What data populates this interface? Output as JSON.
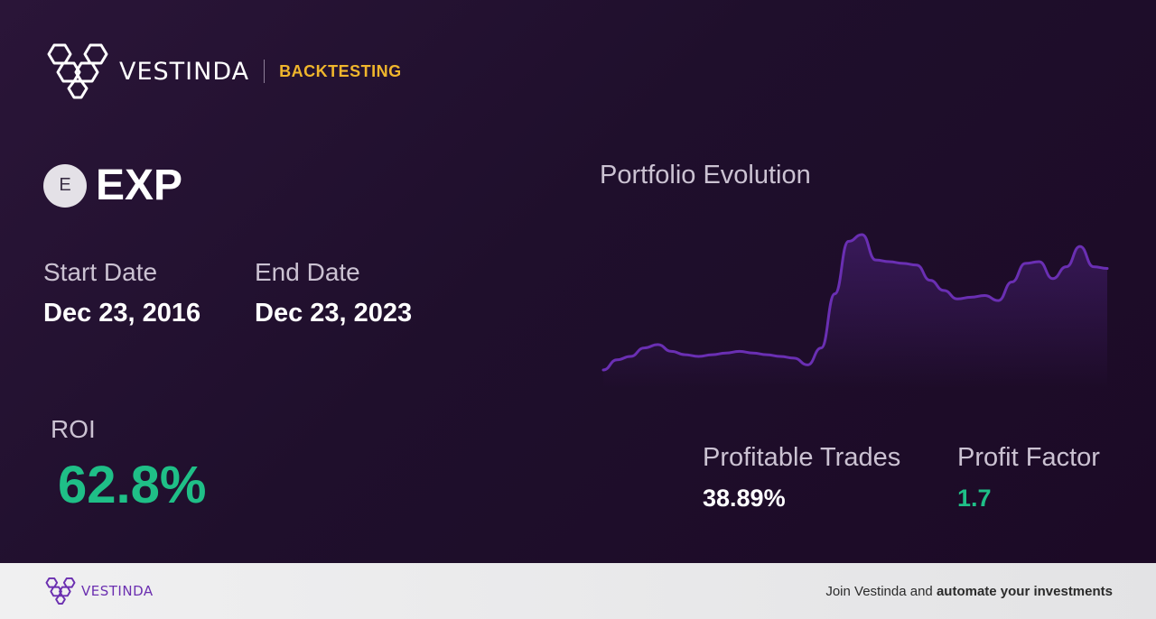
{
  "brand": {
    "name": "VESTINDA",
    "tag": "BACKTESTING",
    "accent_color": "#f0b62c"
  },
  "ticker": {
    "badge": "E",
    "symbol": "EXP"
  },
  "dates": {
    "start_label": "Start Date",
    "start_value": "Dec 23, 2016",
    "end_label": "End Date",
    "end_value": "Dec 23, 2023"
  },
  "roi": {
    "label": "ROI",
    "value": "62.8%",
    "color": "#1fbf87"
  },
  "chart": {
    "title": "Portfolio Evolution",
    "line_color": "#6a2fb3"
  },
  "chart_data": {
    "type": "line",
    "title": "Portfolio Evolution",
    "y": [
      0.8,
      0.86,
      0.88,
      0.93,
      0.95,
      0.91,
      0.89,
      0.88,
      0.89,
      0.9,
      0.91,
      0.9,
      0.89,
      0.88,
      0.87,
      0.83,
      0.93,
      1.25,
      1.56,
      1.6,
      1.45,
      1.44,
      1.43,
      1.42,
      1.33,
      1.27,
      1.22,
      1.23,
      1.24,
      1.21,
      1.32,
      1.43,
      1.44,
      1.34,
      1.41,
      1.53,
      1.41,
      1.4
    ],
    "grid": false,
    "legend": "none"
  },
  "stats": {
    "profitable_trades_label": "Profitable Trades",
    "profitable_trades_value": "38.89%",
    "profit_factor_label": "Profit Factor",
    "profit_factor_value": "1.7",
    "profit_factor_color": "#1fbf87"
  },
  "footer": {
    "brand_name": "VESTINDA",
    "cta_prefix": "Join Vestinda and ",
    "cta_bold": "automate your investments"
  }
}
